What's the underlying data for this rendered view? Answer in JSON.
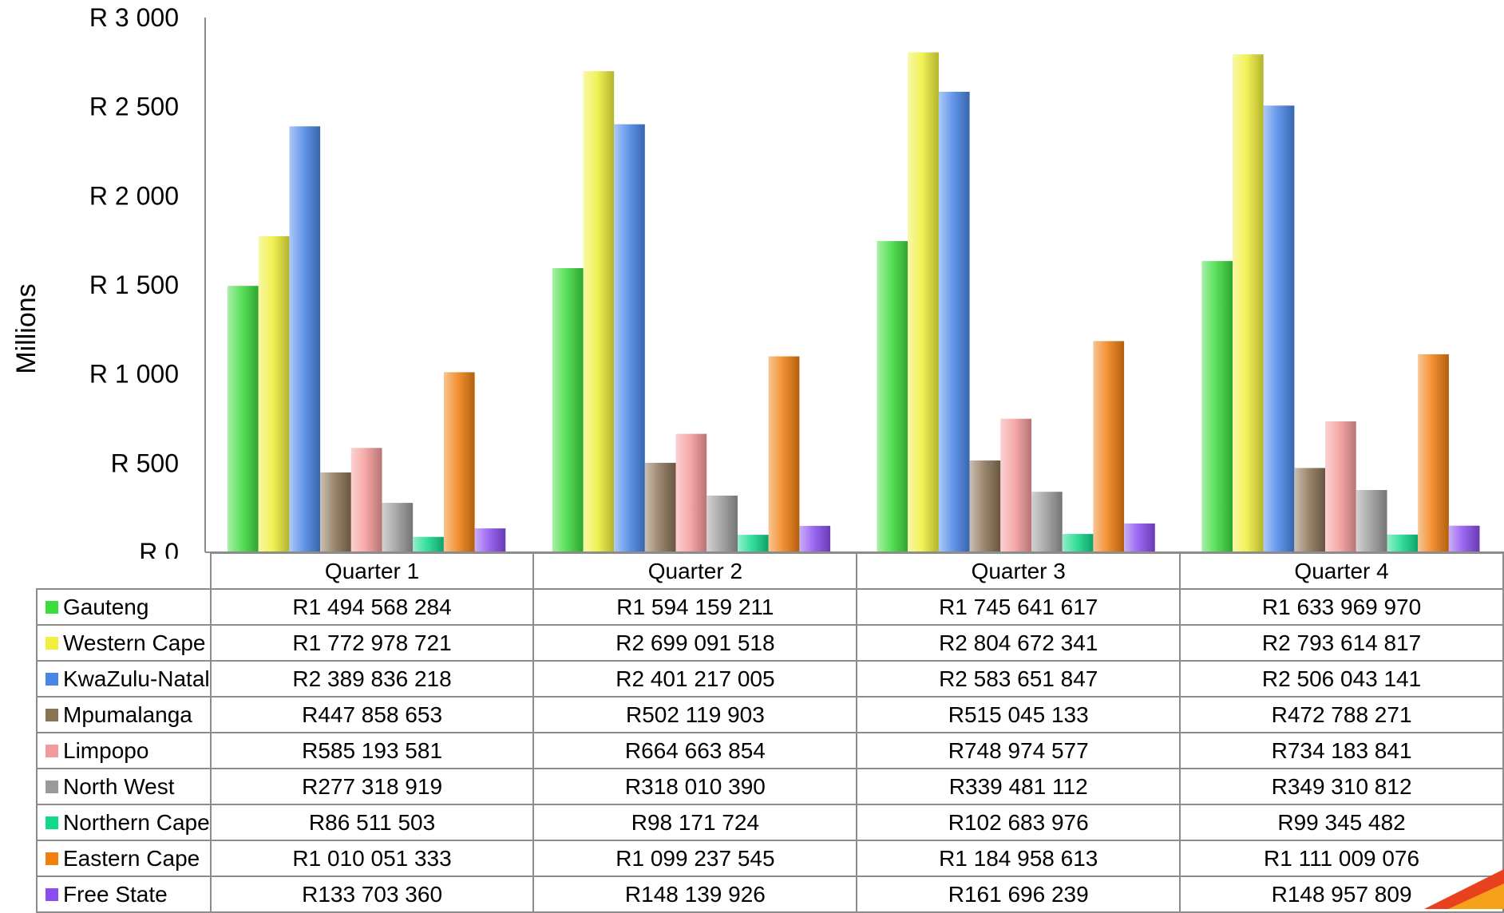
{
  "chart_data": {
    "type": "bar",
    "title": "",
    "xlabel": "",
    "ylabel": "Millions",
    "ylim": [
      0,
      3000
    ],
    "yticks": [
      0,
      500,
      1000,
      1500,
      2000,
      2500,
      3000
    ],
    "ytick_labels": [
      "R 0",
      "R 500",
      "R 1 000",
      "R 1 500",
      "R 2 000",
      "R 2 500",
      "R 3 000"
    ],
    "categories": [
      "Quarter 1",
      "Quarter 2",
      "Quarter 3",
      "Quarter 4"
    ],
    "grid": false,
    "legend": "table",
    "series": [
      {
        "name": "Gauteng",
        "color": "#3ddc3d",
        "values": [
          1494.568284,
          1594.159211,
          1745.641617,
          1633.96997
        ],
        "labels": [
          "R1 494 568 284",
          "R1 594 159 211",
          "R1 745 641 617",
          "R1 633 969 970"
        ]
      },
      {
        "name": "Western Cape",
        "color": "#f0f03a",
        "values": [
          1772.978721,
          2699.091518,
          2804.672341,
          2793.614817
        ],
        "labels": [
          "R1 772 978 721",
          "R2 699 091 518",
          "R2 804 672 341",
          "R2 793 614 817"
        ]
      },
      {
        "name": "KwaZulu-Natal",
        "color": "#4a86e8",
        "values": [
          2389.836218,
          2401.217005,
          2583.651847,
          2506.043141
        ],
        "labels": [
          "R2 389 836 218",
          "R2 401 217 005",
          "R2 583 651 847",
          "R2 506 043 141"
        ]
      },
      {
        "name": "Mpumalanga",
        "color": "#8b7355",
        "values": [
          447.858653,
          502.119903,
          515.045133,
          472.788271
        ],
        "labels": [
          "R447 858 653",
          "R502 119 903",
          "R515 045 133",
          "R472 788 271"
        ]
      },
      {
        "name": "Limpopo",
        "color": "#f59a9a",
        "values": [
          585.193581,
          664.663854,
          748.974577,
          734.183841
        ],
        "labels": [
          "R585 193 581",
          "R664 663 854",
          "R748 974 577",
          "R734 183 841"
        ]
      },
      {
        "name": "North West",
        "color": "#9a9a9a",
        "values": [
          277.318919,
          318.01039,
          339.481112,
          349.310812
        ],
        "labels": [
          "R277 318 919",
          "R318 010 390",
          "R339 481 112",
          "R349 310 812"
        ]
      },
      {
        "name": "Northern Cape",
        "color": "#12d98a",
        "values": [
          86.511503,
          98.171724,
          102.683976,
          99.345482
        ],
        "labels": [
          "R86 511 503",
          "R98 171 724",
          "R102 683 976",
          "R99 345 482"
        ]
      },
      {
        "name": "Eastern Cape",
        "color": "#f07f10",
        "values": [
          1010.051333,
          1099.237545,
          1184.958613,
          1111.009076
        ],
        "labels": [
          "R1 010 051 333",
          "R1 099 237 545",
          "R1 184 958 613",
          "R1 111 009 076"
        ]
      },
      {
        "name": "Free State",
        "color": "#8a4ef0",
        "values": [
          133.70336,
          148.139926,
          161.696239,
          148.957809
        ],
        "labels": [
          "R133 703 360",
          "R148 139 926",
          "R161 696 239",
          "R148 957 809"
        ]
      }
    ]
  }
}
